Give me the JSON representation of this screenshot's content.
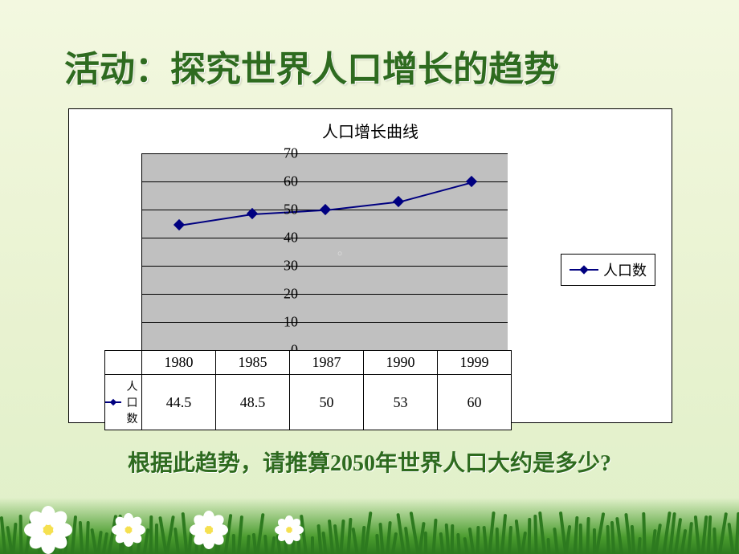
{
  "title": "活动：探究世界人口增长的趋势",
  "caption": "根据此趋势，请推算2050年世界人口大约是多少?",
  "watermark": "。",
  "chart": {
    "type": "line",
    "title": "人口增长曲线",
    "series_name": "人口数",
    "categories": [
      "1980",
      "1985",
      "1987",
      "1990",
      "1999"
    ],
    "values": [
      44.5,
      48.5,
      50,
      53,
      60
    ],
    "value_labels": [
      "44.5",
      "48.5",
      "50",
      "53",
      "60"
    ],
    "ylim": [
      0,
      70
    ],
    "ytick_step": 10,
    "yticks": [
      "0",
      "10",
      "20",
      "30",
      "40",
      "50",
      "60",
      "70"
    ],
    "line_color": "#000080",
    "marker_style": "diamond",
    "plot_bgcolor": "#c0c0c0",
    "grid_color": "#000000",
    "font_family": "SimSun",
    "axis_fontsize": 18,
    "title_fontsize": 20
  },
  "legend_label": "人口数",
  "slide_bg_top": "#f3f8e0",
  "slide_bg_bottom": "#dff0c8",
  "title_color": "#2e6b1f"
}
